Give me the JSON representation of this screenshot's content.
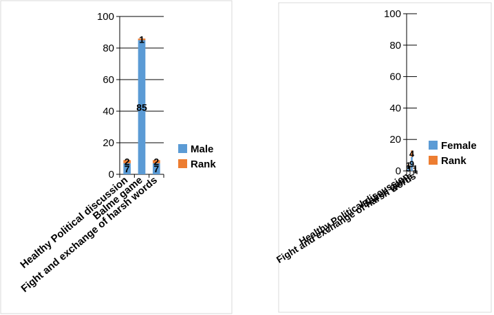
{
  "chart_data": [
    {
      "type": "bar",
      "categories": [
        "Healthy Political discussion",
        "Balme game",
        "Fight and exchange of harsh words"
      ],
      "series": [
        {
          "name": "Male",
          "values": [
            7,
            85,
            7
          ],
          "color": "#5B9BD5"
        },
        {
          "name": "Rank",
          "values": [
            2,
            1,
            2
          ],
          "color": "#ED7D31"
        }
      ],
      "ylim": [
        0,
        100
      ],
      "yticks": [
        "0",
        "20",
        "40",
        "60",
        "80",
        "100"
      ],
      "grid": true,
      "legend": "right"
    },
    {
      "type": "bar",
      "categories": [
        "Healthy Political discussion",
        "Balme game",
        "Fight and exchange of harsh words"
      ],
      "series": [
        {
          "name": "Female",
          "values": [
            3,
            9,
            1
          ],
          "color": "#5B9BD5"
        },
        {
          "name": "Rank",
          "values": [
            1,
            4,
            1
          ],
          "color": "#ED7D31"
        }
      ],
      "ylim": [
        0,
        100
      ],
      "yticks": [
        "0",
        "20",
        "40",
        "60",
        "80",
        "100"
      ],
      "grid": true,
      "legend": "right"
    }
  ]
}
